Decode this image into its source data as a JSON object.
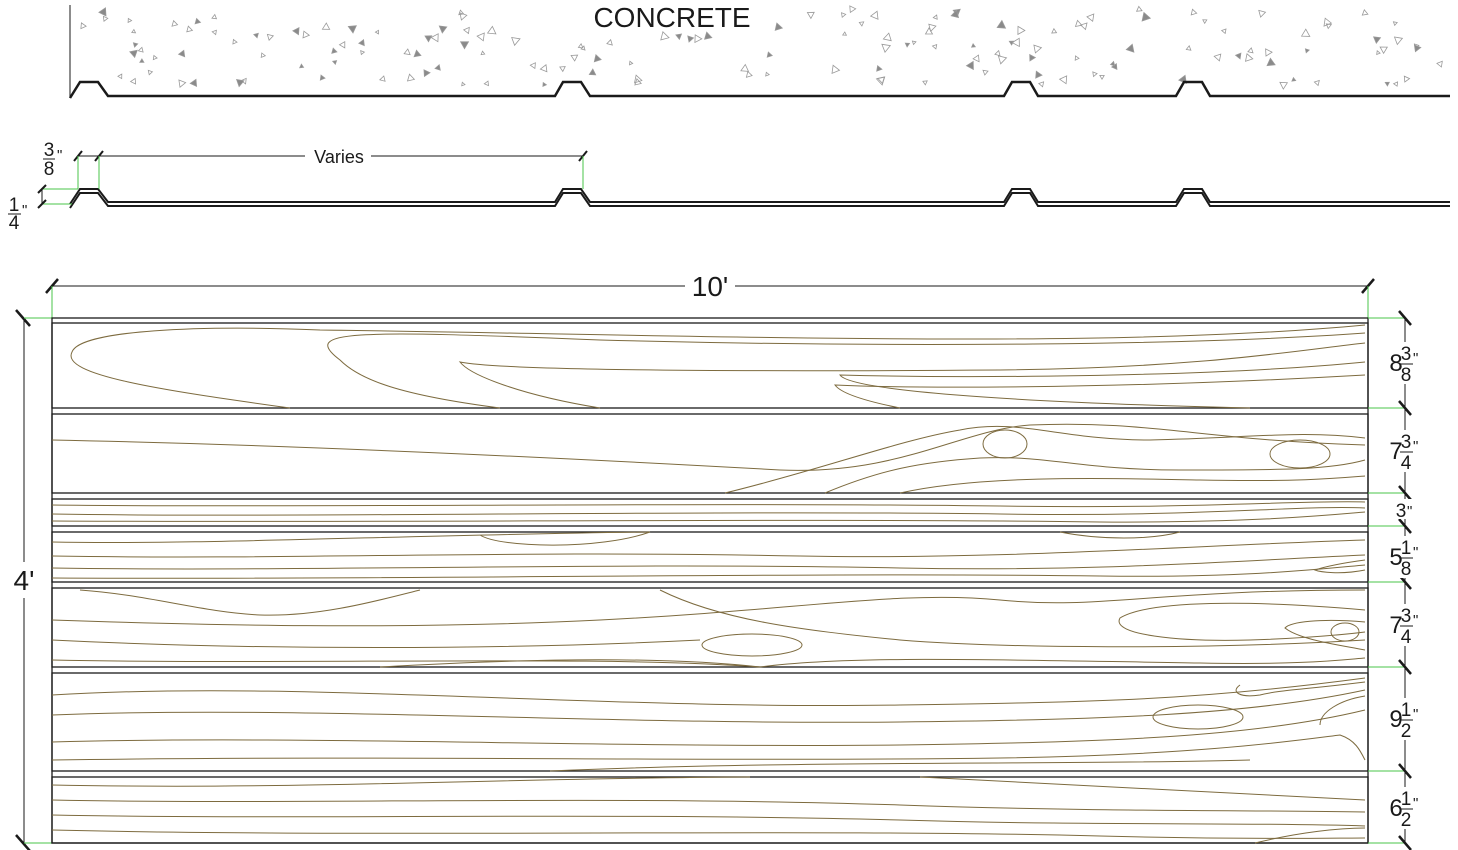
{
  "concrete": {
    "label": "CONCRETE"
  },
  "profile": {
    "rib_spacing_label": "Varies",
    "rib_width": {
      "num": "3",
      "den": "8",
      "unit": "\""
    },
    "rib_height": {
      "num": "1",
      "den": "4",
      "unit": "\""
    }
  },
  "panel": {
    "width_label": "10'",
    "height_label": "4'",
    "boards": [
      {
        "whole": "8",
        "num": "3",
        "den": "8",
        "unit": "\""
      },
      {
        "whole": "7",
        "num": "3",
        "den": "4",
        "unit": "\""
      },
      {
        "whole": "3",
        "num": "",
        "den": "",
        "unit": "\""
      },
      {
        "whole": "5",
        "num": "1",
        "den": "8",
        "unit": "\""
      },
      {
        "whole": "7",
        "num": "3",
        "den": "4",
        "unit": "\""
      },
      {
        "whole": "9",
        "num": "1",
        "den": "2",
        "unit": "\""
      },
      {
        "whole": "6",
        "num": "1",
        "den": "2",
        "unit": "\""
      }
    ]
  },
  "colors": {
    "line": "#1a1a1a",
    "grain": "#7d6b3f",
    "dimension": "#49c449",
    "aggregate": "#9a9a9a"
  }
}
